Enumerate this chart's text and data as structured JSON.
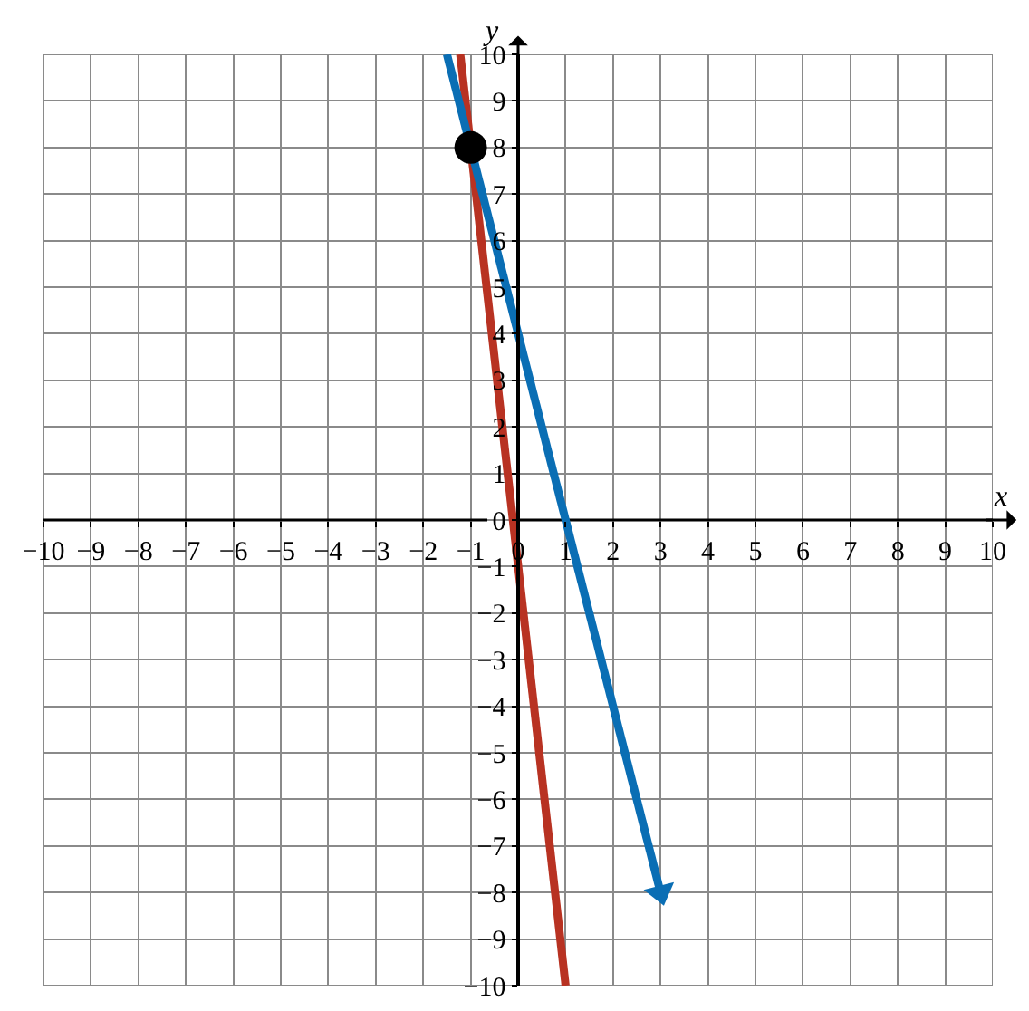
{
  "chart_data": {
    "type": "line",
    "xlabel": "x",
    "ylabel": "y",
    "series": [
      {
        "color": "#b83222",
        "x": [
          -1.22,
          1
        ],
        "values": [
          10,
          -10
        ]
      },
      {
        "color": "#0a6eb4",
        "x": [
          -1.5,
          3
        ],
        "values": [
          10,
          -8
        ]
      },
      {
        "type": "scatter",
        "color": "#000000",
        "x": [
          -1
        ],
        "values": [
          8
        ],
        "marker": "circle"
      }
    ],
    "xlim": [
      -10,
      10
    ],
    "ylim": [
      -10,
      10
    ],
    "xticks": [
      -10,
      -9,
      -8,
      -7,
      -6,
      -5,
      -4,
      -3,
      -2,
      -1,
      0,
      1,
      2,
      3,
      4,
      5,
      6,
      7,
      8,
      9,
      10
    ],
    "yticks": [
      -10,
      -9,
      -8,
      -7,
      -6,
      -5,
      -4,
      -3,
      -2,
      -1,
      0,
      1,
      2,
      3,
      4,
      5,
      6,
      7,
      8,
      9,
      10
    ],
    "grid": true
  }
}
